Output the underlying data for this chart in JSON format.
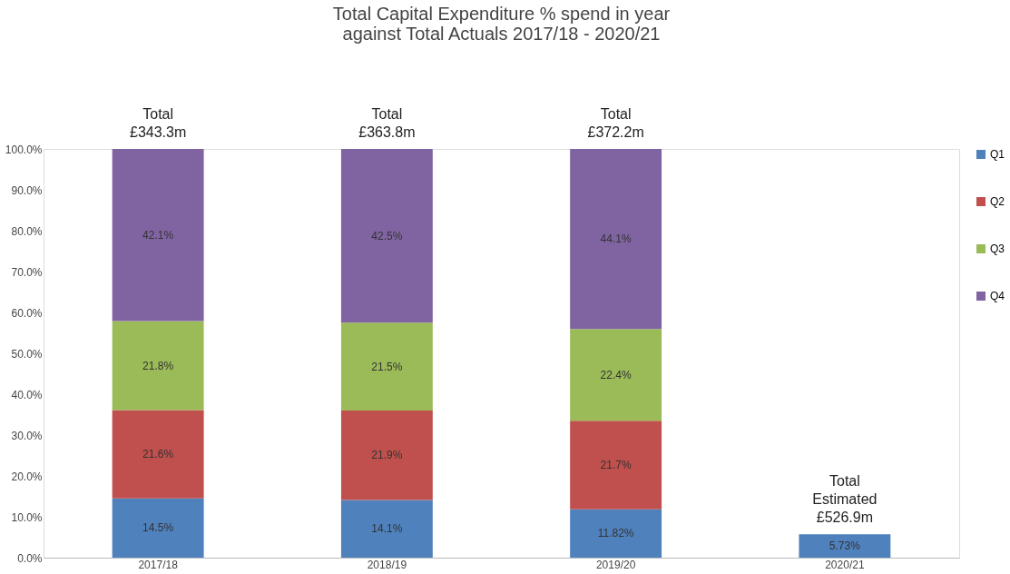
{
  "chart_data": {
    "type": "bar",
    "title": "Total Capital Expenditure % spend in year\nagainst Total Actuals 2017/18 - 2020/21",
    "stacked": true,
    "categories": [
      "2017/18",
      "2018/19",
      "2019/20",
      "2020/21"
    ],
    "series": [
      {
        "name": "Q1",
        "color": "#4f81bd",
        "values": [
          14.5,
          14.1,
          11.82,
          5.73
        ],
        "value_labels": [
          "14.5%",
          "14.1%",
          "11.82%",
          "5.73%"
        ]
      },
      {
        "name": "Q2",
        "color": "#c0504d",
        "values": [
          21.6,
          21.9,
          21.7,
          null
        ],
        "value_labels": [
          "21.6%",
          "21.9%",
          "21.7%",
          null
        ]
      },
      {
        "name": "Q3",
        "color": "#9bbb59",
        "values": [
          21.8,
          21.5,
          22.4,
          null
        ],
        "value_labels": [
          "21.8%",
          "21.5%",
          "22.4%",
          null
        ]
      },
      {
        "name": "Q4",
        "color": "#8064a2",
        "values": [
          42.1,
          42.5,
          44.1,
          null
        ],
        "value_labels": [
          "42.1%",
          "42.5%",
          "44.1%",
          null
        ]
      }
    ],
    "totals": [
      "Total\n£343.3m",
      "Total\n£363.8m",
      "Total\n£372.2m",
      "Total\nEstimated\n£526.9m"
    ],
    "ylim": [
      0,
      100
    ],
    "yticks": [
      {
        "value": 0,
        "label": "0.0%"
      },
      {
        "value": 10,
        "label": "10.0%"
      },
      {
        "value": 20,
        "label": "20.0%"
      },
      {
        "value": 30,
        "label": "30.0%"
      },
      {
        "value": 40,
        "label": "40.0%"
      },
      {
        "value": 50,
        "label": "50.0%"
      },
      {
        "value": 60,
        "label": "60.0%"
      },
      {
        "value": 70,
        "label": "70.0%"
      },
      {
        "value": 80,
        "label": "80.0%"
      },
      {
        "value": 90,
        "label": "90.0%"
      },
      {
        "value": 100,
        "label": "100.0%"
      }
    ],
    "grid": false,
    "legend": "right"
  }
}
